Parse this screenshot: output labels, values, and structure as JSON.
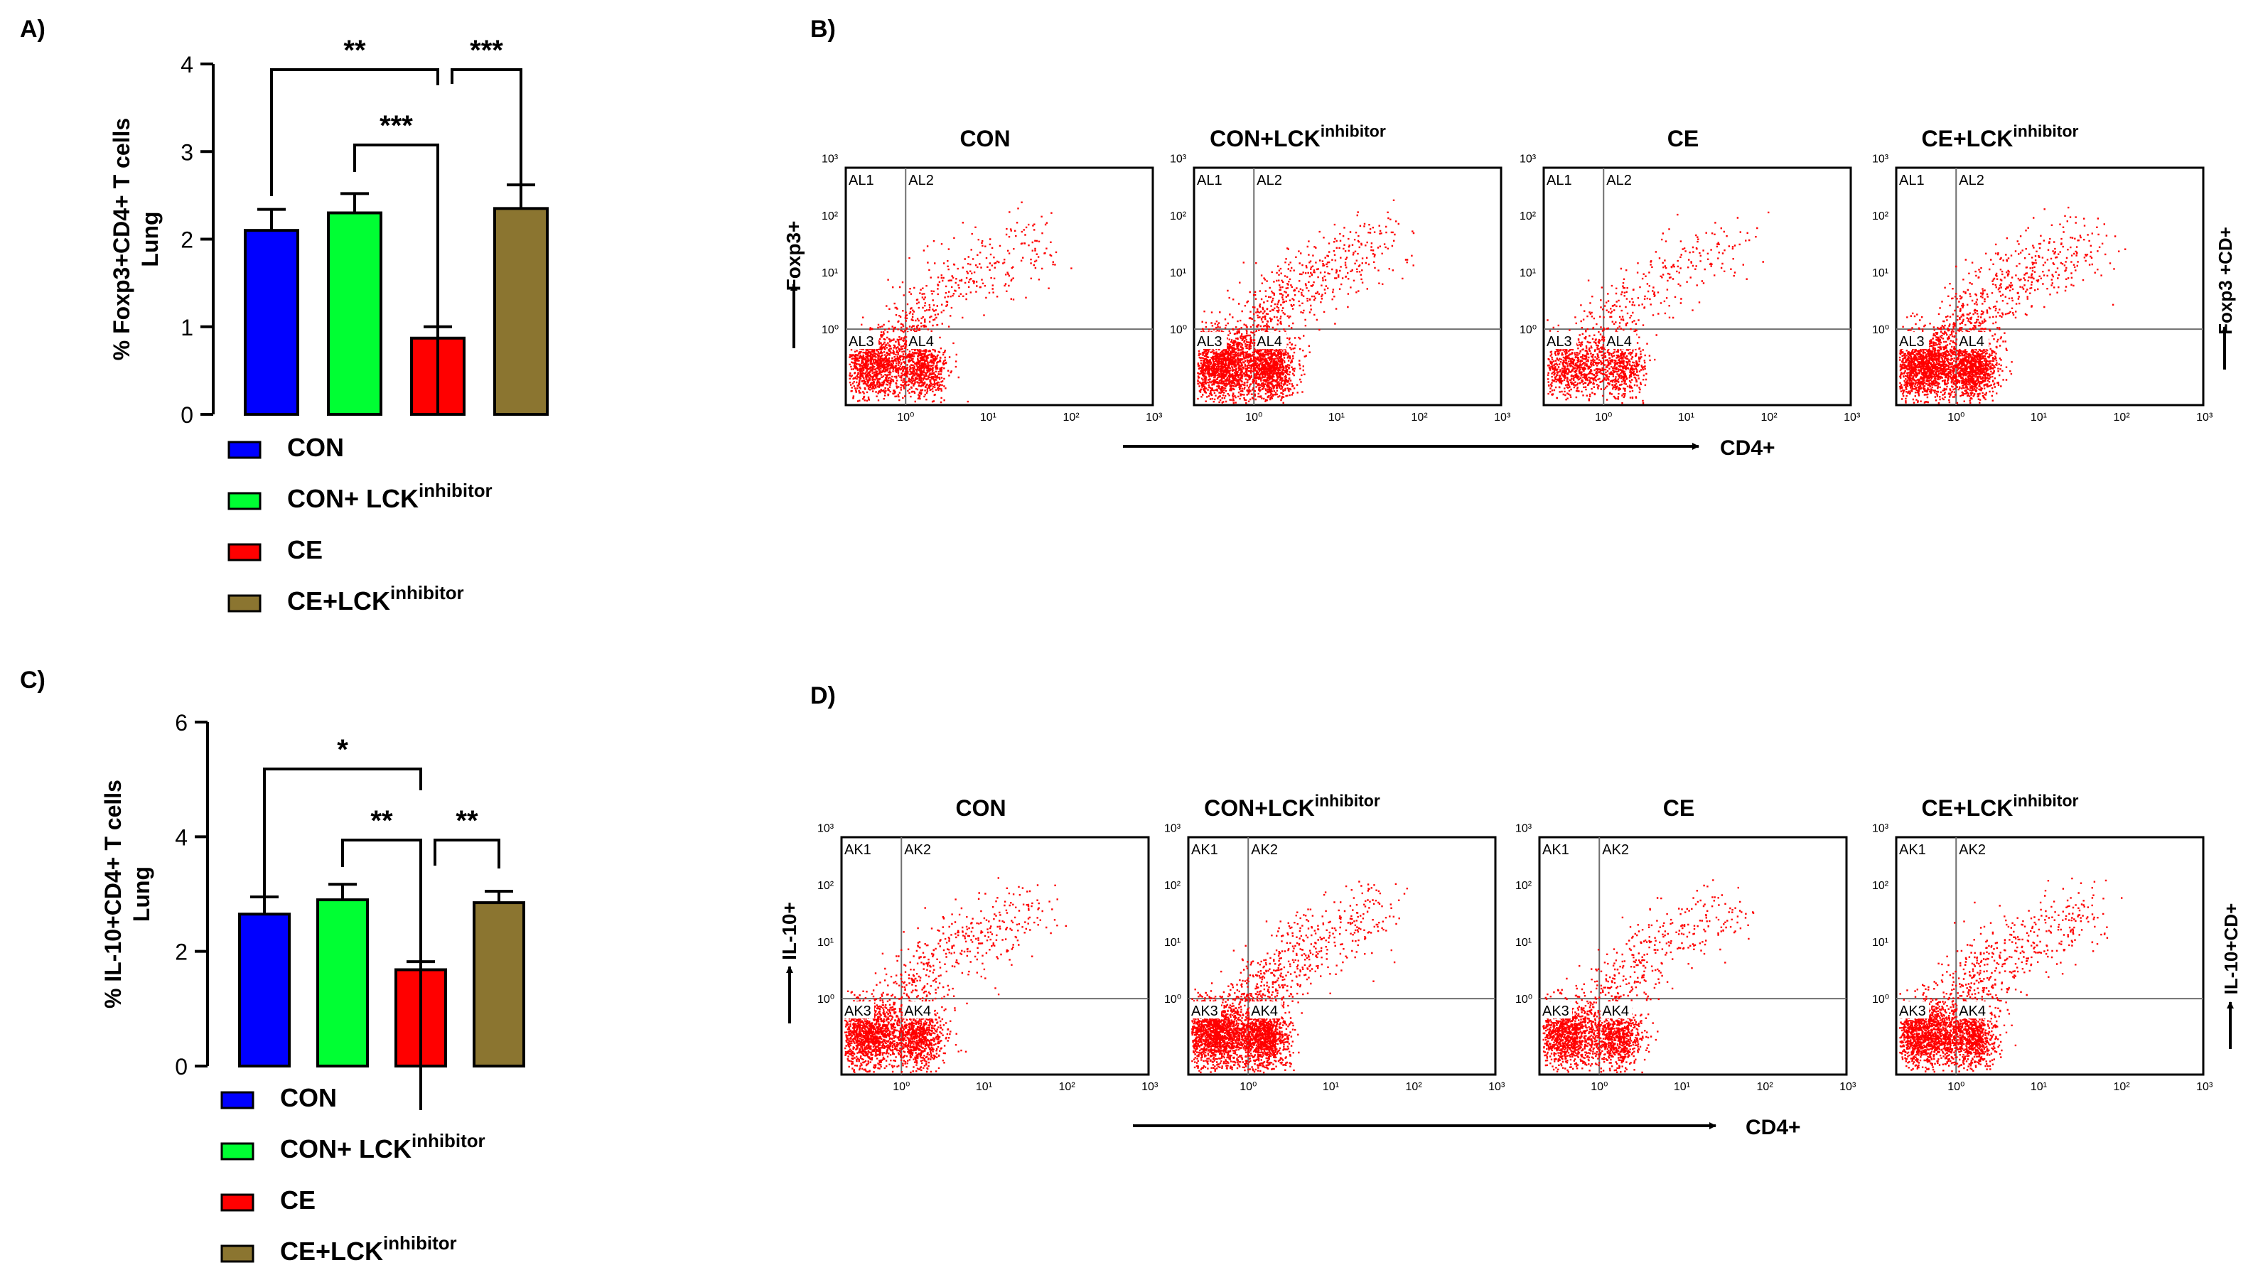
{
  "colors": {
    "CON": "#0000ff",
    "CON+LCK": "#00ff33",
    "CE": "#ff0000",
    "CE+LCK": "#8b7530",
    "dots": "#ff0000",
    "axis": "#000000",
    "gate": "#707070"
  },
  "panels": [
    {
      "letter": "A)",
      "ylabel": "% Foxp3+CD4+ T cells",
      "ylabel2": "Lung"
    },
    {
      "letter": "B)"
    },
    {
      "letter": "C)",
      "ylabel": "% IL-10+CD4+ T cells",
      "ylabel2": "Lung"
    },
    {
      "letter": "D)"
    }
  ],
  "legend": [
    {
      "main": "CON",
      "sup": "",
      "color": "#0000ff"
    },
    {
      "main": "CON+ LCK",
      "sup": "inhibitor",
      "color": "#00ff33"
    },
    {
      "main": "CE",
      "sup": "",
      "color": "#ff0000"
    },
    {
      "main": "CE+LCK",
      "sup": "inhibitor",
      "color": "#8b7530"
    }
  ],
  "chart_data": [
    {
      "type": "bar",
      "panel": "A",
      "ylabel": "% Foxp3+CD4+ T cells Lung",
      "ylim": [
        0,
        4
      ],
      "yticks": [
        0,
        1,
        2,
        3,
        4
      ],
      "categories": [
        "CON",
        "CON+ LCK inhibitor",
        "CE",
        "CE+LCK inhibitor"
      ],
      "values": [
        2.1,
        2.3,
        0.87,
        2.35
      ],
      "errors": [
        0.24,
        0.22,
        0.13,
        0.27
      ],
      "significance": [
        {
          "from": 0,
          "to": 2,
          "label": "**",
          "level": 3
        },
        {
          "from": 2,
          "to": 3,
          "label": "***",
          "level": 3
        },
        {
          "from": 1,
          "to": 2,
          "label": "***",
          "level": 2
        }
      ]
    },
    {
      "type": "bar",
      "panel": "C",
      "ylabel": "% IL-10+CD4+ T cells Lung",
      "ylim": [
        0,
        6
      ],
      "yticks": [
        0,
        2,
        4,
        6
      ],
      "categories": [
        "CON",
        "CON+ LCK inhibitor",
        "CE",
        "CE+LCK inhibitor"
      ],
      "values": [
        2.65,
        2.9,
        1.68,
        2.85
      ],
      "errors": [
        0.3,
        0.27,
        0.14,
        0.2
      ],
      "significance": [
        {
          "from": 0,
          "to": 2,
          "label": "*",
          "level": 3
        },
        {
          "from": 1,
          "to": 2,
          "label": "**",
          "level": 2
        },
        {
          "from": 2,
          "to": 3,
          "label": "**",
          "level": 2
        }
      ]
    },
    {
      "type": "scatter",
      "panel": "B",
      "xlabel": "CD4+",
      "ylabel": "Foxp3+",
      "right_label": "Foxp3 +CD+",
      "x_scale": "log",
      "y_scale": "log",
      "x_ticks": [
        "10⁰",
        "10¹",
        "10²",
        "10³"
      ],
      "y_ticks": [
        "10⁰",
        "10¹",
        "10²",
        "10³"
      ],
      "quadrants": [
        "AL1",
        "AL2",
        "AL3",
        "AL4"
      ],
      "plots": [
        {
          "title": "CON",
          "sup": "",
          "density": "low"
        },
        {
          "title": "CON+LCK",
          "sup": "inhibitor",
          "density": "high"
        },
        {
          "title": "CE",
          "sup": "",
          "density": "very-low"
        },
        {
          "title": "CE+LCK",
          "sup": "inhibitor",
          "density": "high"
        }
      ]
    },
    {
      "type": "scatter",
      "panel": "D",
      "xlabel": "CD4+",
      "ylabel": "IL-10+",
      "right_label": "IL-10+CD+",
      "x_scale": "log",
      "y_scale": "log",
      "x_ticks": [
        "10⁰",
        "10¹",
        "10²",
        "10³"
      ],
      "y_ticks": [
        "10⁰",
        "10¹",
        "10²",
        "10³"
      ],
      "quadrants": [
        "AK1",
        "AK2",
        "AK3",
        "AK4"
      ],
      "plots": [
        {
          "title": "CON",
          "sup": "",
          "density": "medium"
        },
        {
          "title": "CON+LCK",
          "sup": "inhibitor",
          "density": "high"
        },
        {
          "title": "CE",
          "sup": "",
          "density": "low"
        },
        {
          "title": "CE+LCK",
          "sup": "inhibitor",
          "density": "medium"
        }
      ]
    }
  ]
}
